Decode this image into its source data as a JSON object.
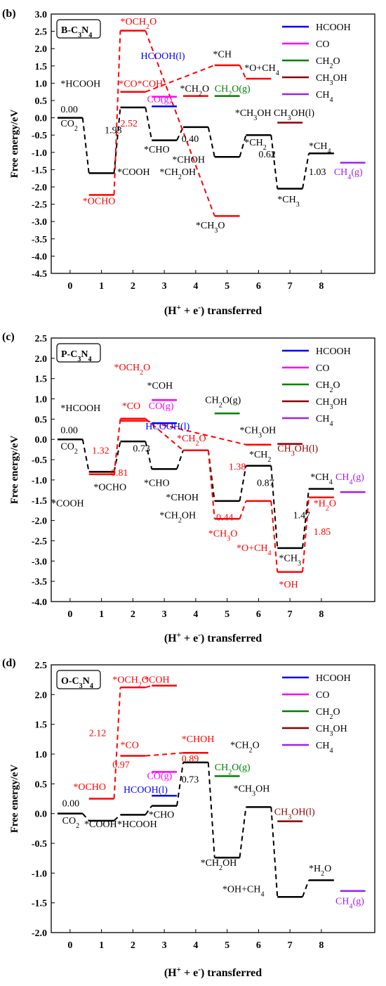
{
  "colors": {
    "HCOOH": "#0000ff",
    "CO": "#ff00ff",
    "CH2O": "#008000",
    "CH3OH": "#8b0000",
    "CH4": "#a020f0",
    "red": "#ff0000",
    "black": "#000000"
  },
  "chart_data": [
    {
      "panel": "(b)",
      "type": "line",
      "box_label": "B-C3N4",
      "ylabel": "Free energy/eV",
      "xlabel": "(H+ + e-) transferred",
      "xlim": [
        -0.6,
        9.7
      ],
      "ylim": [
        -4.5,
        3.0
      ],
      "xticks": [
        0,
        1,
        2,
        3,
        4,
        5,
        6,
        7,
        8
      ],
      "yticks": [
        3.0,
        2.5,
        2.0,
        1.5,
        1.0,
        0.5,
        0.0,
        -0.5,
        -1.0,
        -1.5,
        -2.0,
        -2.5,
        -3.0,
        -3.5,
        -4.0,
        -4.5
      ],
      "legend": [
        "HCOOH",
        "CO",
        "CH2O",
        "CH3OH",
        "CH4"
      ],
      "legend_position": "top-right",
      "series": [
        {
          "name": "black",
          "levels": [
            [
              0,
              0.0
            ],
            [
              1,
              -1.6
            ],
            [
              2,
              0.3
            ],
            [
              3,
              -0.65
            ],
            [
              4,
              -0.27
            ],
            [
              5,
              -1.13
            ],
            [
              6,
              -0.5
            ],
            [
              7,
              -2.05
            ],
            [
              8,
              -1.03
            ]
          ]
        },
        {
          "name": "red",
          "levels": [
            [
              1,
              -2.23
            ],
            [
              2,
              2.52
            ],
            [
              5,
              -2.84
            ]
          ]
        },
        {
          "name": "red",
          "levels": [
            [
              2,
              0.75
            ],
            [
              5,
              1.52
            ],
            [
              6,
              1.13
            ]
          ]
        },
        {
          "name": "red",
          "levels": [
            [
              4,
              0.63
            ]
          ]
        },
        {
          "name": "CO",
          "levels": [
            [
              3,
              0.61
            ]
          ]
        },
        {
          "name": "HCOOH",
          "levels": [
            [
              3,
              0.33
            ]
          ]
        },
        {
          "name": "CH2O",
          "levels": [
            [
              5,
              0.63
            ]
          ]
        },
        {
          "name": "CH3OH",
          "levels": [
            [
              7,
              -0.14
            ]
          ]
        },
        {
          "name": "CH4",
          "levels": [
            [
              9,
              -1.3
            ]
          ]
        }
      ],
      "annotations": [
        {
          "text": "0.00",
          "x": -0.3,
          "y": 0.15,
          "color": "black"
        },
        {
          "text": "CO2",
          "x": -0.3,
          "y": -0.25,
          "color": "black"
        },
        {
          "text": "1.93",
          "x": 1.1,
          "y": -0.45,
          "color": "black"
        },
        {
          "text": "2.52",
          "x": 1.6,
          "y": -0.25,
          "color": "red"
        },
        {
          "text": "*OCHO",
          "x": 0.4,
          "y": -2.5,
          "color": "red"
        },
        {
          "text": "*COOH",
          "x": 1.5,
          "y": -1.65,
          "color": "black"
        },
        {
          "text": "*HCOOH",
          "x": -0.3,
          "y": 0.9,
          "color": "black"
        },
        {
          "text": "*OCH2O",
          "x": 1.6,
          "y": 2.7,
          "color": "red"
        },
        {
          "text": "*CO*COH",
          "x": 1.55,
          "y": 0.9,
          "color": "red"
        },
        {
          "text": "HCOOH(l)",
          "x": 2.25,
          "y": 1.7,
          "color": "HCOOH"
        },
        {
          "text": "CO(g)",
          "x": 2.45,
          "y": 0.45,
          "color": "CO"
        },
        {
          "text": "*CHO",
          "x": 2.35,
          "y": -1.0,
          "color": "black"
        },
        {
          "text": "0.40",
          "x": 3.55,
          "y": -0.7,
          "color": "black"
        },
        {
          "text": "*CH2O",
          "x": 3.5,
          "y": 0.75,
          "color": "black"
        },
        {
          "text": "CH2O(g)",
          "x": 4.6,
          "y": 0.75,
          "color": "CH2O"
        },
        {
          "text": "*CHOH",
          "x": 3.25,
          "y": -1.3,
          "color": "black"
        },
        {
          "text": "*CH2OH",
          "x": 2.85,
          "y": -1.65,
          "color": "black"
        },
        {
          "text": "*CH",
          "x": 4.55,
          "y": 1.75,
          "color": "black"
        },
        {
          "text": "*O+CH4",
          "x": 5.55,
          "y": 1.35,
          "color": "black"
        },
        {
          "text": "*CH3OH CH3OH(l)",
          "x": 5.25,
          "y": 0.05,
          "color": "black"
        },
        {
          "text": "*CH2",
          "x": 5.55,
          "y": -0.8,
          "color": "black"
        },
        {
          "text": "0.62",
          "x": 6.0,
          "y": -1.15,
          "color": "black"
        },
        {
          "text": "*CH3",
          "x": 6.6,
          "y": -2.45,
          "color": "black"
        },
        {
          "text": "1.03",
          "x": 7.6,
          "y": -1.65,
          "color": "black"
        },
        {
          "text": "*CH4",
          "x": 7.6,
          "y": -0.9,
          "color": "black"
        },
        {
          "text": "CH4(g)",
          "x": 8.4,
          "y": -1.65,
          "color": "CH4"
        },
        {
          "text": "*CH3O",
          "x": 4.0,
          "y": -3.2,
          "color": "black"
        }
      ]
    },
    {
      "panel": "(c)",
      "type": "line",
      "box_label": "P-C3N4",
      "ylabel": "Free energy/eV",
      "xlabel": "(H+ + e-) transferred",
      "xlim": [
        -0.6,
        9.7
      ],
      "ylim": [
        -4.0,
        2.5
      ],
      "xticks": [
        0,
        1,
        2,
        3,
        4,
        5,
        6,
        7,
        8
      ],
      "yticks": [
        2.5,
        2.0,
        1.5,
        1.0,
        0.5,
        0.0,
        -0.5,
        -1.0,
        -1.5,
        -2.0,
        -2.5,
        -3.0,
        -3.5,
        -4.0
      ],
      "legend": [
        "HCOOH",
        "CO",
        "CH2O",
        "CH3OH",
        "CH4"
      ],
      "legend_position": "top-right",
      "series": [
        {
          "name": "black",
          "levels": [
            [
              0,
              0.0
            ],
            [
              1,
              -0.8
            ],
            [
              2,
              -0.05
            ],
            [
              3,
              -0.73
            ],
            [
              4,
              -0.27
            ],
            [
              5,
              -1.52
            ],
            [
              6,
              -0.65
            ],
            [
              7,
              -2.68
            ],
            [
              8,
              -1.22
            ]
          ]
        },
        {
          "name": "red",
          "levels": [
            [
              1,
              -0.86
            ],
            [
              2,
              0.51
            ],
            [
              4,
              -0.27
            ],
            [
              5,
              -1.96
            ],
            [
              6,
              -1.52
            ],
            [
              7,
              -3.27
            ],
            [
              8,
              -1.43
            ]
          ]
        },
        {
          "name": "red",
          "levels": [
            [
              2,
              0.46
            ],
            [
              6,
              -0.13
            ]
          ]
        },
        {
          "name": "CO",
          "levels": [
            [
              3,
              0.97
            ]
          ]
        },
        {
          "name": "HCOOH",
          "levels": [
            [
              3,
              0.4
            ]
          ]
        },
        {
          "name": "CH2O",
          "levels": [
            [
              5,
              0.64
            ]
          ]
        },
        {
          "name": "CH3OH",
          "levels": [
            [
              7,
              -0.11
            ]
          ]
        },
        {
          "name": "CH4",
          "levels": [
            [
              9,
              -1.3
            ]
          ]
        }
      ],
      "annotations": [
        {
          "text": "0.00",
          "x": -0.3,
          "y": 0.15,
          "color": "black"
        },
        {
          "text": "CO2",
          "x": -0.3,
          "y": -0.25,
          "color": "black"
        },
        {
          "text": "1.32",
          "x": 0.7,
          "y": -0.35,
          "color": "red"
        },
        {
          "text": "0.81",
          "x": 1.3,
          "y": -0.9,
          "color": "red"
        },
        {
          "text": "0.73",
          "x": 2.0,
          "y": -0.3,
          "color": "black"
        },
        {
          "text": "*OCHO",
          "x": 0.75,
          "y": -1.25,
          "color": "black"
        },
        {
          "text": "*COOH",
          "x": -0.6,
          "y": -1.65,
          "color": "black"
        },
        {
          "text": "*HCOOH",
          "x": -0.3,
          "y": 0.7,
          "color": "black"
        },
        {
          "text": "*OCH2O",
          "x": 1.4,
          "y": 1.7,
          "color": "red"
        },
        {
          "text": "*CO",
          "x": 1.65,
          "y": 0.75,
          "color": "red"
        },
        {
          "text": "*COH",
          "x": 2.45,
          "y": 1.25,
          "color": "black"
        },
        {
          "text": "CO(g)",
          "x": 2.5,
          "y": 0.75,
          "color": "CO"
        },
        {
          "text": "HCOOH(l)",
          "x": 2.4,
          "y": 0.25,
          "color": "HCOOH"
        },
        {
          "text": "*CH2O",
          "x": 3.4,
          "y": -0.05,
          "color": "red"
        },
        {
          "text": "*CHO",
          "x": 2.35,
          "y": -1.15,
          "color": "black"
        },
        {
          "text": "*CHOH",
          "x": 3.05,
          "y": -1.5,
          "color": "black"
        },
        {
          "text": "CH2O(g)",
          "x": 4.3,
          "y": 0.9,
          "color": "black"
        },
        {
          "text": "*CH2OH",
          "x": 2.85,
          "y": -1.95,
          "color": "black"
        },
        {
          "text": "0.44",
          "x": 4.65,
          "y": -2.0,
          "color": "red"
        },
        {
          "text": "*CH3O",
          "x": 4.4,
          "y": -2.4,
          "color": "red"
        },
        {
          "text": "1.38",
          "x": 5.05,
          "y": -0.75,
          "color": "red"
        },
        {
          "text": "*CH3OH",
          "x": 5.4,
          "y": 0.15,
          "color": "black"
        },
        {
          "text": "CH3OH(l)",
          "x": 6.6,
          "y": -0.3,
          "color": "CH3OH"
        },
        {
          "text": "*CH2",
          "x": 5.7,
          "y": -0.45,
          "color": "black"
        },
        {
          "text": "0.87",
          "x": 5.95,
          "y": -1.15,
          "color": "black"
        },
        {
          "text": "*O+CH4",
          "x": 5.3,
          "y": -2.75,
          "color": "red"
        },
        {
          "text": "1.47",
          "x": 7.1,
          "y": -1.95,
          "color": "black"
        },
        {
          "text": "*CH3",
          "x": 6.65,
          "y": -3.0,
          "color": "black"
        },
        {
          "text": "*OH",
          "x": 6.65,
          "y": -3.65,
          "color": "red"
        },
        {
          "text": "*CH4",
          "x": 7.65,
          "y": -1.0,
          "color": "black"
        },
        {
          "text": "CH4(g)",
          "x": 8.45,
          "y": -1.0,
          "color": "CH4"
        },
        {
          "text": "*H2O",
          "x": 7.75,
          "y": -1.65,
          "color": "red"
        },
        {
          "text": "1.85",
          "x": 7.75,
          "y": -2.35,
          "color": "red"
        }
      ]
    },
    {
      "panel": "(d)",
      "type": "line",
      "box_label": "O-C3N4",
      "ylabel": "Free energy/eV",
      "xlabel": "(H+ + e-) transferred",
      "xlim": [
        -0.6,
        9.7
      ],
      "ylim": [
        -2.0,
        2.5
      ],
      "xticks": [
        0,
        1,
        2,
        3,
        4,
        5,
        6,
        7,
        8
      ],
      "yticks": [
        2.5,
        2.0,
        1.5,
        1.0,
        0.5,
        0.0,
        -0.5,
        -1.0,
        -1.5,
        -2.0
      ],
      "legend": [
        "HCOOH",
        "CO",
        "CH2O",
        "CH3OH",
        "CH4"
      ],
      "legend_position": "top-right",
      "series": [
        {
          "name": "black",
          "levels": [
            [
              0,
              0.0
            ],
            [
              1,
              -0.12
            ],
            [
              2,
              -0.02
            ],
            [
              3,
              0.13
            ],
            [
              4,
              0.86
            ],
            [
              5,
              -0.74
            ],
            [
              6,
              0.11
            ],
            [
              7,
              -1.4
            ],
            [
              8,
              -1.12
            ]
          ]
        },
        {
          "name": "red",
          "levels": [
            [
              1,
              0.25
            ],
            [
              2,
              2.12
            ],
            [
              3,
              2.15
            ]
          ]
        },
        {
          "name": "red",
          "levels": [
            [
              2,
              0.97
            ],
            [
              4,
              1.02
            ]
          ]
        },
        {
          "name": "CO",
          "levels": [
            [
              3,
              0.7
            ]
          ]
        },
        {
          "name": "HCOOH",
          "levels": [
            [
              3,
              0.3
            ]
          ]
        },
        {
          "name": "CH2O",
          "levels": [
            [
              5,
              0.63
            ]
          ]
        },
        {
          "name": "CH3OH",
          "levels": [
            [
              7,
              -0.13
            ]
          ]
        },
        {
          "name": "CH4",
          "levels": [
            [
              9,
              -1.3
            ]
          ]
        }
      ],
      "annotations": [
        {
          "text": "0.00",
          "x": -0.25,
          "y": 0.12,
          "color": "black"
        },
        {
          "text": "CO2",
          "x": -0.25,
          "y": -0.17,
          "color": "black"
        },
        {
          "text": "*COOH",
          "x": 0.45,
          "y": -0.23,
          "color": "black"
        },
        {
          "text": "*HCOOH",
          "x": 1.5,
          "y": -0.23,
          "color": "black"
        },
        {
          "text": "*OCHO",
          "x": 0.1,
          "y": 0.4,
          "color": "red"
        },
        {
          "text": "2.12",
          "x": 0.6,
          "y": 1.3,
          "color": "red"
        },
        {
          "text": "*CO",
          "x": 1.6,
          "y": 1.1,
          "color": "red"
        },
        {
          "text": "0.97",
          "x": 1.35,
          "y": 0.77,
          "color": "red"
        },
        {
          "text": "*OCH2O",
          "x": 1.35,
          "y": 2.2,
          "color": "red"
        },
        {
          "text": "*COH",
          "x": 2.35,
          "y": 2.2,
          "color": "red"
        },
        {
          "text": "CO(g)",
          "x": 2.45,
          "y": 0.58,
          "color": "CO"
        },
        {
          "text": "HCOOH(l)",
          "x": 1.7,
          "y": 0.35,
          "color": "HCOOH"
        },
        {
          "text": "*CHO",
          "x": 2.5,
          "y": -0.07,
          "color": "black"
        },
        {
          "text": "*CHOH",
          "x": 3.55,
          "y": 1.2,
          "color": "red"
        },
        {
          "text": "0.89",
          "x": 3.55,
          "y": 0.87,
          "color": "red"
        },
        {
          "text": "0.73",
          "x": 3.55,
          "y": 0.52,
          "color": "black"
        },
        {
          "text": "*CH2O",
          "x": 5.1,
          "y": 1.1,
          "color": "black"
        },
        {
          "text": "CH2O(g)",
          "x": 4.6,
          "y": 0.73,
          "color": "CH2O"
        },
        {
          "text": "*CH2OH",
          "x": 4.15,
          "y": -0.88,
          "color": "black"
        },
        {
          "text": "*CH3OH",
          "x": 5.2,
          "y": 0.37,
          "color": "black"
        },
        {
          "text": "CH3OH(l)",
          "x": 6.5,
          "y": -0.02,
          "color": "CH3OH"
        },
        {
          "text": "*OH+CH4",
          "x": 4.85,
          "y": -1.32,
          "color": "black"
        },
        {
          "text": "*H2O",
          "x": 7.6,
          "y": -0.97,
          "color": "black"
        },
        {
          "text": "CH4(g)",
          "x": 8.45,
          "y": -1.52,
          "color": "CH4"
        }
      ]
    }
  ]
}
